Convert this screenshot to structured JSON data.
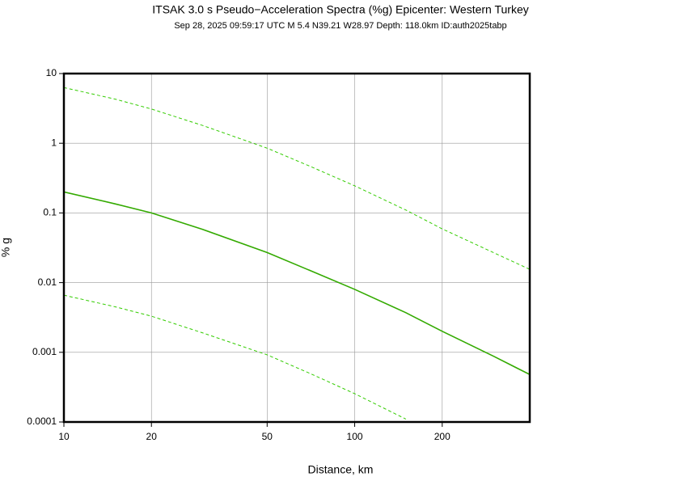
{
  "chart_data": {
    "type": "line",
    "title": "ITSAK 3.0 s Pseudo−Acceleration Spectra (%g) Epicenter: Western Turkey",
    "subtitle": "Sep 28, 2025 09:59:17 UTC   M 5.4   N39.21 W28.97   Depth: 118.0km   ID:auth2025tabp",
    "x_label": "Distance, km",
    "y_label": "% g",
    "x": [
      10,
      15,
      20,
      30,
      50,
      70,
      100,
      150,
      200,
      300,
      400
    ],
    "series": [
      {
        "color": "#33cc00",
        "dashed": true,
        "values": [
          6.3,
          4.3,
          3.1,
          1.8,
          0.85,
          0.47,
          0.245,
          0.11,
          0.059,
          0.027,
          0.0155
        ]
      },
      {
        "color": "#33aa00",
        "dashed": false,
        "values": [
          0.2,
          0.135,
          0.1,
          0.058,
          0.027,
          0.015,
          0.008,
          0.0037,
          0.002,
          0.00088,
          0.00048
        ]
      },
      {
        "color": "#33cc00",
        "dashed": true,
        "values": [
          0.0066,
          0.0045,
          0.0033,
          0.0019,
          0.00092,
          0.0005,
          0.000255,
          0.00011,
          null,
          null,
          null
        ]
      }
    ],
    "xlim": [
      10,
      400
    ],
    "ylim": [
      0.0001,
      10
    ],
    "xticks": [
      10,
      20,
      50,
      100,
      200
    ],
    "yticks": [
      0.0001,
      0.001,
      0.01,
      0.1,
      1,
      10
    ],
    "xlog": true,
    "ylog": true,
    "grid": true
  }
}
